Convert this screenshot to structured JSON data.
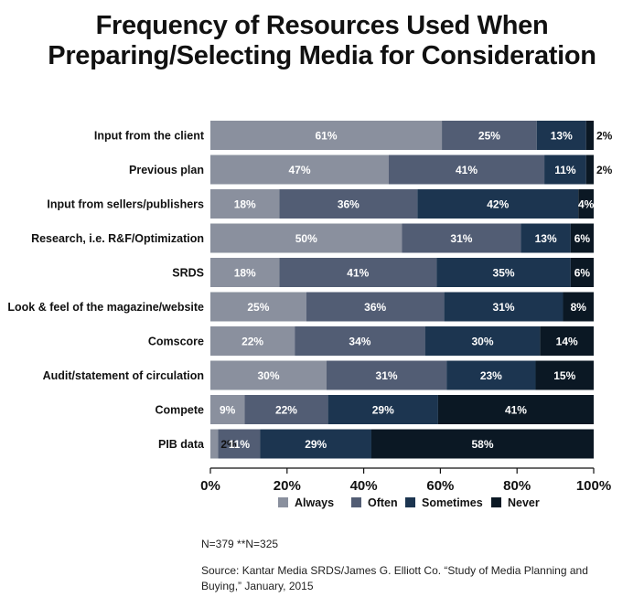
{
  "chart_data": {
    "type": "bar",
    "orientation": "horizontal",
    "stacked": true,
    "title_lines": [
      "Frequency of Resources Used When",
      "Preparing/Selecting Media for Consideration"
    ],
    "categories": [
      "Input from the client",
      "Previous plan",
      "Input from sellers/publishers",
      "Research, i.e. R&F/Optimization",
      "SRDS",
      "Look & feel of the magazine/website",
      "Comscore",
      "Audit/statement of circulation",
      "Compete",
      "PIB data"
    ],
    "series": [
      {
        "name": "Always",
        "color": "#8a909e",
        "values": [
          61,
          47,
          18,
          50,
          18,
          25,
          22,
          30,
          9,
          2
        ]
      },
      {
        "name": "Often",
        "color": "#525d74",
        "values": [
          25,
          41,
          36,
          31,
          41,
          36,
          34,
          31,
          22,
          11
        ]
      },
      {
        "name": "Sometimes",
        "color": "#1c3550",
        "values": [
          13,
          11,
          42,
          13,
          35,
          31,
          30,
          23,
          29,
          29
        ]
      },
      {
        "name": "Never",
        "color": "#0b1824",
        "values": [
          2,
          2,
          4,
          6,
          6,
          8,
          14,
          15,
          41,
          58
        ]
      }
    ],
    "x_ticks": [
      "0%",
      "20%",
      "40%",
      "60%",
      "80%",
      "100%"
    ],
    "xlim": [
      0,
      100
    ],
    "legend_position": "bottom",
    "grid": false
  },
  "footnotes": {
    "sample": "N=379  **N=325",
    "source": "Source: Kantar Media SRDS/James G. Elliott Co. “Study of Media Planning and Buying,” January, 2015"
  }
}
